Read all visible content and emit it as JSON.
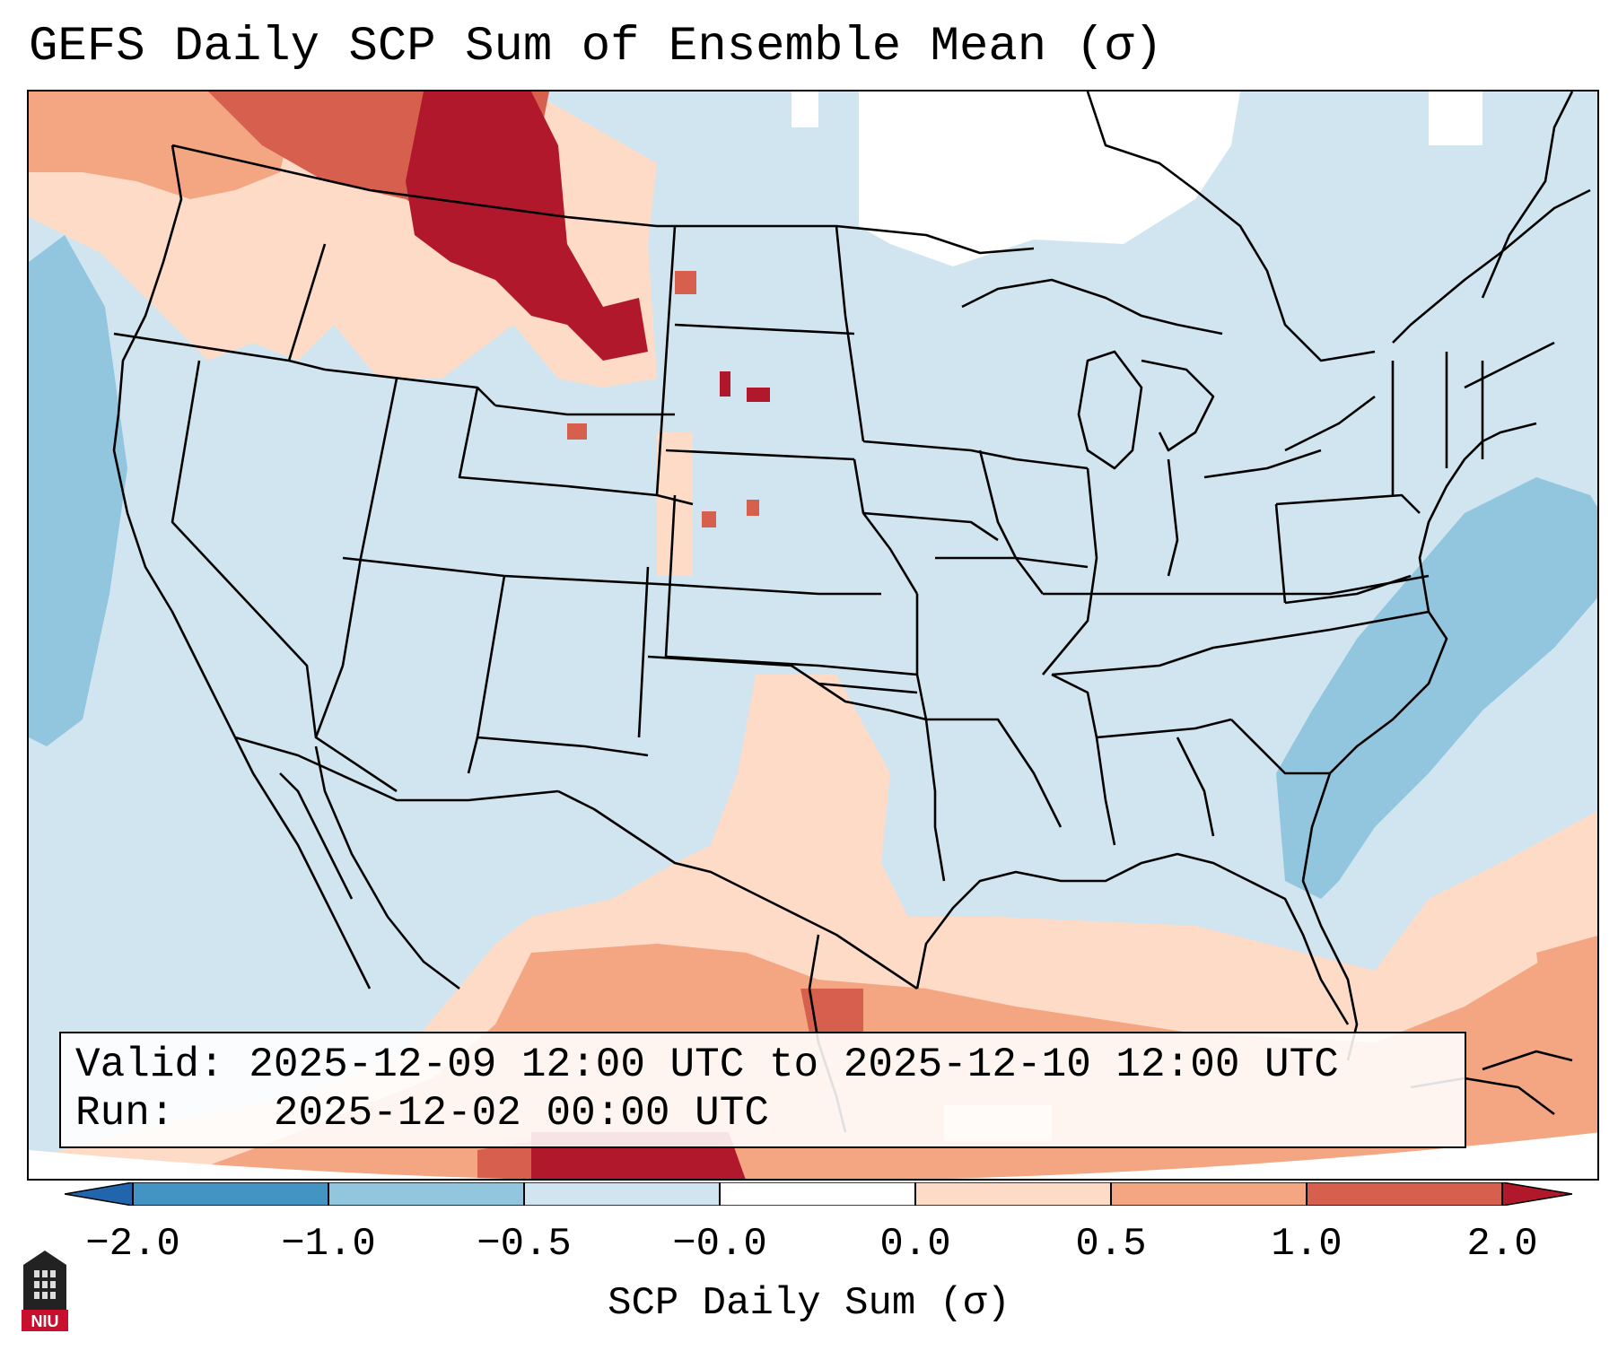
{
  "title": "GEFS Daily SCP Sum of Ensemble Mean (σ)",
  "info": {
    "valid_label": "Valid:",
    "valid_value": "2025-12-09 12:00 UTC to 2025-12-10 12:00 UTC",
    "run_label": "Run:",
    "run_value": "2025-12-02 00:00 UTC"
  },
  "colorbar": {
    "label": "SCP Daily Sum (σ)",
    "ticks": [
      "−2.0",
      "−1.0",
      "−0.5",
      "−0.0",
      "0.0",
      "0.5",
      "1.0",
      "2.0"
    ],
    "colors": {
      "under": "#2166ac",
      "bins": [
        "#4393c3",
        "#92c5de",
        "#d1e5f0",
        "#ffffff",
        "#fddbc7",
        "#f4a582",
        "#d6604d"
      ],
      "over": "#b2182b"
    }
  },
  "logo": {
    "text": "NIU"
  }
}
